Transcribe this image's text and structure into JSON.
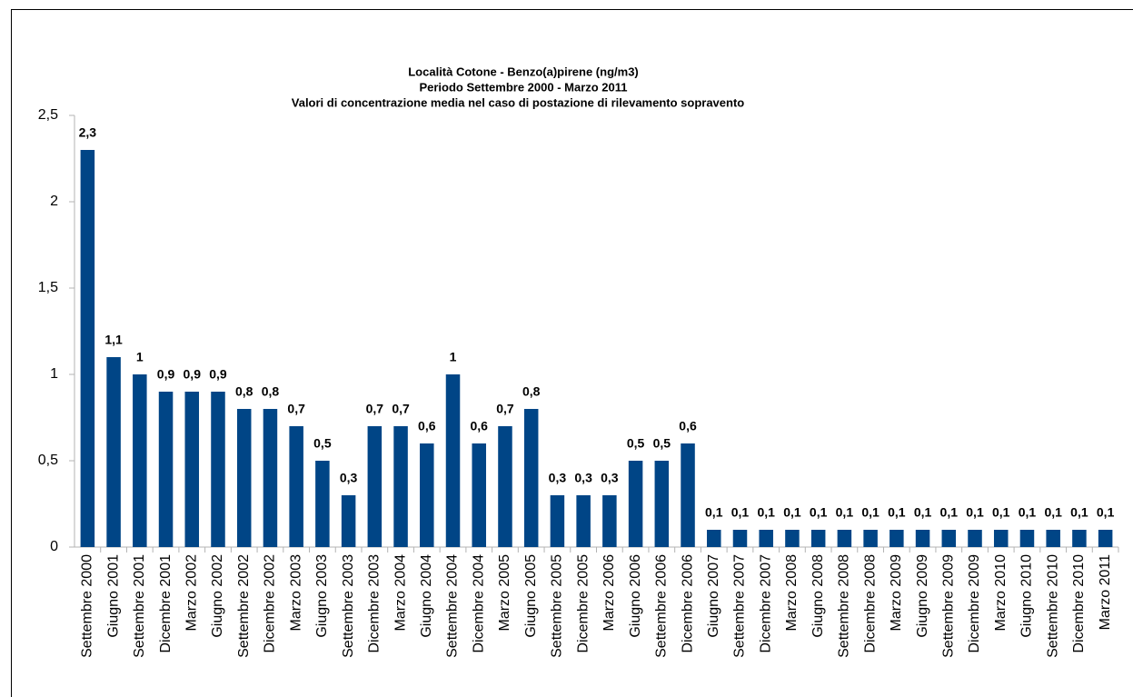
{
  "chart_data": {
    "type": "bar",
    "title": [
      "Località Cotone - Benzo(a)pirene (ng/m3)",
      "Periodo Settembre 2000 - Marzo 2011",
      "Valori di concentrazione media nel caso di postazione di rilevamento sopravento"
    ],
    "categories": [
      "Settembre 2000",
      "Giugno 2001",
      "Settembre 2001",
      "Dicembre 2001",
      "Marzo 2002",
      "Giugno 2002",
      "Settembre 2002",
      "Dicembre 2002",
      "Marzo 2003",
      "Giugno 2003",
      "Settembre 2003",
      "Dicembre 2003",
      "Marzo 2004",
      "Giugno 2004",
      "Settembre 2004",
      "Dicembre 2004",
      "Marzo 2005",
      "Giugno 2005",
      "Settembre 2005",
      "Dicembre 2005",
      "Marzo 2006",
      "Giugno 2006",
      "Settembre 2006",
      "Dicembre 2006",
      "Giugno 2007",
      "Settembre 2007",
      "Dicembre 2007",
      "Marzo 2008",
      "Giugno 2008",
      "Settembre 2008",
      "Dicembre 2008",
      "Marzo 2009",
      "Giugno 2009",
      "Settembre 2009",
      "Dicembre 2009",
      "Marzo 2010",
      "Giugno 2010",
      "Settembre 2010",
      "Dicembre 2010",
      "Marzo 2011"
    ],
    "values": [
      2.3,
      1.1,
      1,
      0.9,
      0.9,
      0.9,
      0.8,
      0.8,
      0.7,
      0.5,
      0.3,
      0.7,
      0.7,
      0.6,
      1,
      0.6,
      0.7,
      0.8,
      0.3,
      0.3,
      0.3,
      0.5,
      0.5,
      0.6,
      0.1,
      0.1,
      0.1,
      0.1,
      0.1,
      0.1,
      0.1,
      0.1,
      0.1,
      0.1,
      0.1,
      0.1,
      0.1,
      0.1,
      0.1,
      0.1
    ],
    "value_labels": [
      "2,3",
      "1,1",
      "1",
      "0,9",
      "0,9",
      "0,9",
      "0,8",
      "0,8",
      "0,7",
      "0,5",
      "0,3",
      "0,7",
      "0,7",
      "0,6",
      "1",
      "0,6",
      "0,7",
      "0,8",
      "0,3",
      "0,3",
      "0,3",
      "0,5",
      "0,5",
      "0,6",
      "0,1",
      "0,1",
      "0,1",
      "0,1",
      "0,1",
      "0,1",
      "0,1",
      "0,1",
      "0,1",
      "0,1",
      "0,1",
      "0,1",
      "0,1",
      "0,1",
      "0,1",
      "0,1"
    ],
    "color": "#004586",
    "ylim": [
      0,
      2.5
    ],
    "yticks": [
      0,
      {
        "value": 0.5,
        "label": "0,5"
      },
      1,
      {
        "value": 1.5,
        "label": "1,5"
      },
      2,
      {
        "value": 2.5,
        "label": "2,5"
      }
    ],
    "grid": false
  }
}
